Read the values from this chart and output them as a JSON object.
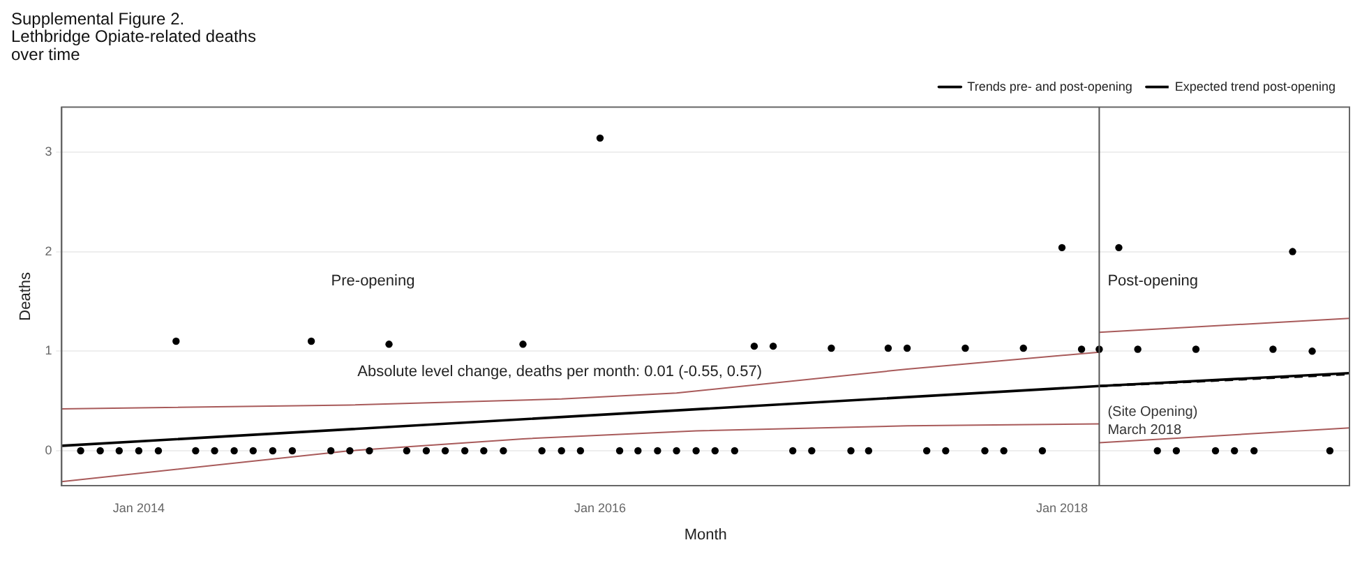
{
  "chart_data": {
    "type": "scatter",
    "title": "Supplemental Figure 2.\nLethbridge Opiate-related deaths\nover time",
    "xlabel": "Month",
    "ylabel": "Deaths",
    "x": [
      "2013-10",
      "2013-11",
      "2013-12",
      "2014-01",
      "2014-02",
      "2014-03",
      "2014-04",
      "2014-05",
      "2014-06",
      "2014-07",
      "2014-08",
      "2014-09",
      "2014-10",
      "2014-11",
      "2014-12",
      "2015-01",
      "2015-02",
      "2015-03",
      "2015-04",
      "2015-05",
      "2015-06",
      "2015-07",
      "2015-08",
      "2015-09",
      "2015-10",
      "2015-11",
      "2015-12",
      "2016-01",
      "2016-02",
      "2016-03",
      "2016-04",
      "2016-05",
      "2016-06",
      "2016-07",
      "2016-08",
      "2016-09",
      "2016-10",
      "2016-11",
      "2016-12",
      "2017-01",
      "2017-02",
      "2017-03",
      "2017-04",
      "2017-05",
      "2017-06",
      "2017-07",
      "2017-08",
      "2017-09",
      "2017-10",
      "2017-11",
      "2017-12",
      "2018-01",
      "2018-02",
      "2018-03",
      "2018-04",
      "2018-05",
      "2018-06",
      "2018-07",
      "2018-08",
      "2018-09",
      "2018-10",
      "2018-11",
      "2018-12",
      "2019-01",
      "2019-02",
      "2019-03"
    ],
    "series": [
      {
        "color": "#000000",
        "marker": "circle",
        "values": [
          0,
          0,
          0,
          0,
          0,
          1.1,
          0,
          0,
          0,
          0,
          0,
          0,
          1.1,
          0,
          0,
          0,
          1.07,
          0,
          0,
          0,
          0,
          0,
          0,
          1.07,
          0,
          0,
          0,
          3.14,
          0,
          0,
          0,
          0,
          0,
          0,
          0,
          1.05,
          1.05,
          0,
          0,
          1.03,
          0,
          0,
          1.03,
          1.03,
          0,
          0,
          1.03,
          0,
          0,
          1.03,
          0,
          2.04,
          1.02,
          1.02,
          2.04,
          1.02,
          0,
          0,
          1.02,
          0,
          0,
          0,
          1.02,
          2.0,
          1.0,
          0
        ]
      },
      {
        "type": "line",
        "name": "Trends pre- and post-opening",
        "color": "#000000",
        "marker": "none",
        "line_style": "solid",
        "x": [
          "2013-09",
          "2018-03",
          "2019-04"
        ],
        "values": [
          0.05,
          0.65,
          0.78
        ]
      },
      {
        "type": "line",
        "name": "Expected trend post-opening",
        "color": "#000000",
        "marker": "none",
        "line_style": "dashed",
        "x": [
          "2018-03",
          "2019-04"
        ],
        "values": [
          0.65,
          0.77
        ]
      },
      {
        "type": "line",
        "color": "#a85a5a",
        "marker": "none",
        "line_style": "solid",
        "x": [
          "2013-09",
          "2014-12",
          "2015-11",
          "2016-05",
          "2017-05",
          "2018-03"
        ],
        "values": [
          0.42,
          0.46,
          0.52,
          0.58,
          0.82,
          0.99
        ]
      },
      {
        "type": "line",
        "color": "#a85a5a",
        "marker": "none",
        "line_style": "solid",
        "x": [
          "2018-03",
          "2019-04"
        ],
        "values": [
          1.19,
          1.33
        ]
      },
      {
        "type": "line",
        "color": "#a85a5a",
        "marker": "none",
        "line_style": "solid",
        "x": [
          "2013-09",
          "2014-12",
          "2015-09",
          "2016-06",
          "2017-05",
          "2018-03"
        ],
        "values": [
          -0.31,
          0.0,
          0.12,
          0.2,
          0.25,
          0.27
        ]
      },
      {
        "type": "line",
        "color": "#a85a5a",
        "marker": "none",
        "line_style": "solid",
        "x": [
          "2018-03",
          "2019-04"
        ],
        "values": [
          0.08,
          0.23
        ]
      }
    ],
    "xlim": [
      "2013-09",
      "2019-04"
    ],
    "xticks": [
      {
        "value": "2014-01",
        "label": "Jan 2014"
      },
      {
        "value": "2016-01",
        "label": "Jan 2016"
      },
      {
        "value": "2018-01",
        "label": "Jan 2018"
      }
    ],
    "ylim": [
      -0.35,
      3.45
    ],
    "yticks": [
      0,
      1,
      2,
      3
    ],
    "grid": "y",
    "legend": "top right",
    "ref_lines": [
      {
        "axis": "x",
        "value": "2018-03",
        "label": "(Site Opening)\nMarch 2018",
        "color": "#555555"
      }
    ],
    "annotations": [
      "Pre-opening",
      "Post-opening",
      "Absolute level change, deaths per month: 0.01 (-0.55, 0.57)"
    ]
  }
}
